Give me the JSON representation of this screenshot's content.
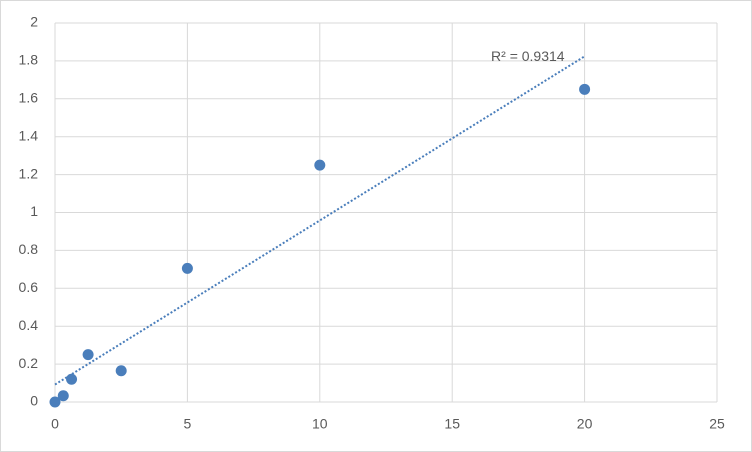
{
  "chart_data": {
    "type": "scatter",
    "x": [
      0,
      0.3125,
      0.625,
      1.25,
      2.5,
      5,
      10,
      20
    ],
    "values": [
      0,
      0.033,
      0.12,
      0.25,
      0.165,
      0.705,
      1.25,
      1.65
    ],
    "color": "#4a7ebb",
    "xlim": [
      0,
      25
    ],
    "xticks": [
      0,
      5,
      10,
      15,
      20,
      25
    ],
    "ylim": [
      0,
      2
    ],
    "yticks": [
      0,
      0.2,
      0.4,
      0.6,
      0.8,
      1,
      1.2,
      1.4,
      1.6,
      1.8,
      2
    ],
    "grid": true,
    "trendline": {
      "type": "linear",
      "color": "#4a7ebb",
      "label": "R² = 0.9314"
    }
  }
}
